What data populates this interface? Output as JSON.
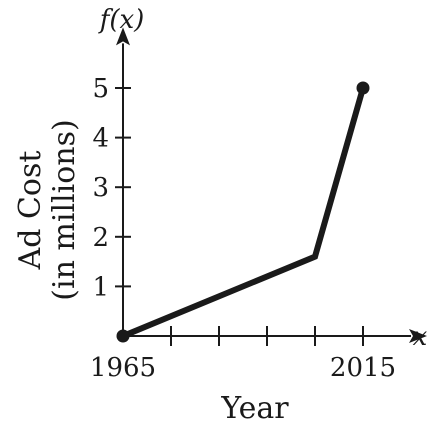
{
  "chart_data": {
    "type": "line",
    "x": [
      1965,
      2005,
      2015
    ],
    "series": [
      {
        "values": [
          0,
          1.6,
          5
        ]
      }
    ],
    "xlabel": "Year",
    "ylabel_lines": [
      "Ad Cost",
      "(in millions)"
    ],
    "x_axis_var": "x",
    "y_axis_var": "f(x)",
    "xlim": [
      1965,
      2025
    ],
    "ylim": [
      0,
      5.9
    ],
    "x_ticks": [
      1965,
      1975,
      1985,
      1995,
      2005,
      2015
    ],
    "x_tick_labels": [
      {
        "value": 1965,
        "label": "1965"
      },
      {
        "value": 2015,
        "label": "2015"
      }
    ],
    "y_ticks": [
      1,
      2,
      3,
      4,
      5
    ],
    "y_tick_labels": [
      "1",
      "2",
      "3",
      "4",
      "5"
    ],
    "grid": false,
    "colors": {
      "line": "#1a1a1a",
      "axis": "#1a1a1a"
    }
  }
}
